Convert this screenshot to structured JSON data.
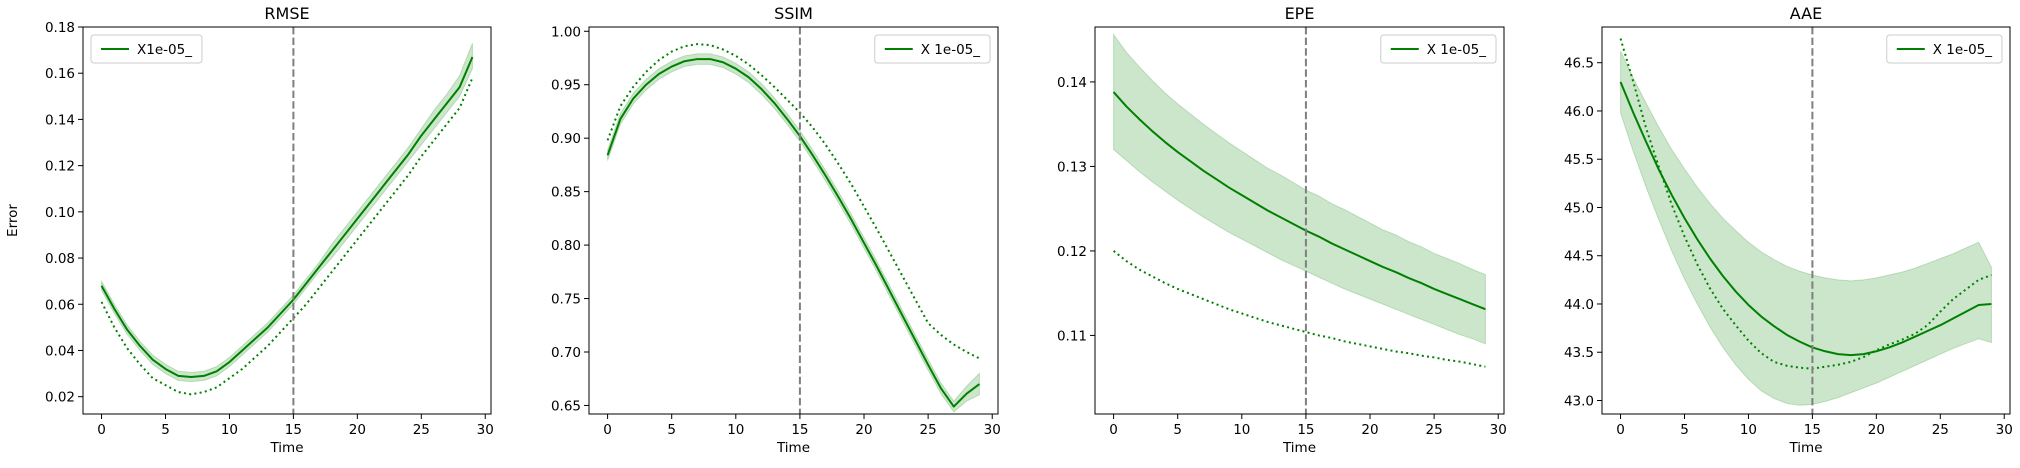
{
  "chart_data": [
    {
      "type": "line",
      "title": "RMSE",
      "xlabel": "Time",
      "ylabel": "Error",
      "xlim": [
        -1.45,
        30.45
      ],
      "ylim": [
        0.0125,
        0.18
      ],
      "xticks": [
        0,
        5,
        10,
        15,
        20,
        25,
        30
      ],
      "xtick_labels": [
        "0",
        "5",
        "10",
        "15",
        "20",
        "25",
        "30"
      ],
      "yticks": [
        0.02,
        0.04,
        0.06,
        0.08,
        0.1,
        0.12,
        0.14,
        0.16,
        0.18
      ],
      "ytick_labels": [
        "0.02",
        "0.04",
        "0.06",
        "0.08",
        "0.10",
        "0.12",
        "0.14",
        "0.16",
        "0.18"
      ],
      "vline_x": 15,
      "legend": {
        "label": "X1e-05_",
        "loc": "upper left"
      },
      "color": "#008000",
      "x": [
        0,
        1,
        2,
        3,
        4,
        5,
        6,
        7,
        8,
        9,
        10,
        11,
        12,
        13,
        14,
        15,
        16,
        17,
        18,
        19,
        20,
        21,
        22,
        23,
        24,
        25,
        26,
        27,
        28,
        29
      ],
      "series": [
        {
          "name": "X1e-05_",
          "style": "solid",
          "values": [
            0.068,
            0.058,
            0.049,
            0.042,
            0.036,
            0.032,
            0.029,
            0.0285,
            0.029,
            0.031,
            0.035,
            0.04,
            0.045,
            0.05,
            0.056,
            0.062,
            0.069,
            0.076,
            0.083,
            0.09,
            0.097,
            0.104,
            0.111,
            0.118,
            0.125,
            0.133,
            0.14,
            0.147,
            0.154,
            0.167
          ],
          "band_low": [
            0.066,
            0.056,
            0.047,
            0.04,
            0.034,
            0.03,
            0.027,
            0.0265,
            0.027,
            0.029,
            0.033,
            0.038,
            0.043,
            0.048,
            0.054,
            0.06,
            0.067,
            0.074,
            0.08,
            0.087,
            0.094,
            0.101,
            0.108,
            0.115,
            0.122,
            0.129,
            0.136,
            0.143,
            0.15,
            0.162
          ],
          "band_high": [
            0.07,
            0.06,
            0.051,
            0.044,
            0.038,
            0.034,
            0.031,
            0.0305,
            0.031,
            0.033,
            0.037,
            0.042,
            0.047,
            0.052,
            0.058,
            0.064,
            0.071,
            0.078,
            0.086,
            0.093,
            0.1,
            0.107,
            0.114,
            0.121,
            0.128,
            0.136,
            0.144,
            0.151,
            0.159,
            0.173
          ]
        },
        {
          "style": "dotted",
          "values": [
            0.061,
            0.05,
            0.041,
            0.034,
            0.028,
            0.025,
            0.022,
            0.021,
            0.022,
            0.024,
            0.028,
            0.032,
            0.037,
            0.042,
            0.048,
            0.054,
            0.06,
            0.067,
            0.074,
            0.081,
            0.088,
            0.095,
            0.102,
            0.109,
            0.116,
            0.124,
            0.131,
            0.138,
            0.145,
            0.158
          ]
        }
      ]
    },
    {
      "type": "line",
      "title": "SSIM",
      "xlabel": "Time",
      "ylabel": "",
      "xlim": [
        -1.45,
        30.45
      ],
      "ylim": [
        0.642,
        1.004
      ],
      "xticks": [
        0,
        5,
        10,
        15,
        20,
        25,
        30
      ],
      "xtick_labels": [
        "0",
        "5",
        "10",
        "15",
        "20",
        "25",
        "30"
      ],
      "yticks": [
        0.65,
        0.7,
        0.75,
        0.8,
        0.85,
        0.9,
        0.95,
        1.0
      ],
      "ytick_labels": [
        "0.65",
        "0.70",
        "0.75",
        "0.80",
        "0.85",
        "0.90",
        "0.95",
        "1.00"
      ],
      "vline_x": 15,
      "legend": {
        "label": "X 1e-05_",
        "loc": "upper right"
      },
      "color": "#008000",
      "x": [
        0,
        1,
        2,
        3,
        4,
        5,
        6,
        7,
        8,
        9,
        10,
        11,
        12,
        13,
        14,
        15,
        16,
        17,
        18,
        19,
        20,
        21,
        22,
        23,
        24,
        25,
        26,
        27,
        28,
        29
      ],
      "series": [
        {
          "name": "X 1e-05_",
          "style": "solid",
          "values": [
            0.884,
            0.918,
            0.937,
            0.95,
            0.96,
            0.967,
            0.972,
            0.974,
            0.974,
            0.971,
            0.965,
            0.957,
            0.946,
            0.933,
            0.918,
            0.902,
            0.884,
            0.865,
            0.845,
            0.824,
            0.802,
            0.78,
            0.757,
            0.734,
            0.711,
            0.688,
            0.666,
            0.649,
            0.661,
            0.67
          ],
          "band_low": [
            0.879,
            0.913,
            0.932,
            0.945,
            0.955,
            0.962,
            0.967,
            0.969,
            0.969,
            0.966,
            0.96,
            0.952,
            0.941,
            0.928,
            0.913,
            0.897,
            0.879,
            0.86,
            0.84,
            0.819,
            0.797,
            0.775,
            0.752,
            0.729,
            0.706,
            0.683,
            0.661,
            0.644,
            0.654,
            0.66
          ],
          "band_high": [
            0.889,
            0.923,
            0.942,
            0.955,
            0.965,
            0.972,
            0.977,
            0.979,
            0.979,
            0.976,
            0.97,
            0.962,
            0.951,
            0.938,
            0.923,
            0.907,
            0.889,
            0.87,
            0.85,
            0.829,
            0.807,
            0.785,
            0.762,
            0.739,
            0.716,
            0.693,
            0.671,
            0.654,
            0.668,
            0.68
          ]
        },
        {
          "style": "dotted",
          "values": [
            0.898,
            0.93,
            0.948,
            0.962,
            0.973,
            0.981,
            0.986,
            0.988,
            0.987,
            0.983,
            0.977,
            0.969,
            0.959,
            0.948,
            0.936,
            0.924,
            0.91,
            0.894,
            0.876,
            0.857,
            0.836,
            0.815,
            0.793,
            0.771,
            0.749,
            0.727,
            0.716,
            0.707,
            0.7,
            0.694
          ]
        }
      ]
    },
    {
      "type": "line",
      "title": "EPE",
      "xlabel": "Time",
      "ylabel": "",
      "xlim": [
        -1.45,
        30.45
      ],
      "ylim": [
        0.1007,
        0.1465
      ],
      "xticks": [
        0,
        5,
        10,
        15,
        20,
        25,
        30
      ],
      "xtick_labels": [
        "0",
        "5",
        "10",
        "15",
        "20",
        "25",
        "30"
      ],
      "yticks": [
        0.11,
        0.12,
        0.13,
        0.14
      ],
      "ytick_labels": [
        "0.11",
        "0.12",
        "0.13",
        "0.14"
      ],
      "vline_x": 15,
      "legend": {
        "label": "X 1e-05_",
        "loc": "upper right"
      },
      "color": "#008000",
      "x": [
        0,
        1,
        2,
        3,
        4,
        5,
        6,
        7,
        8,
        9,
        10,
        11,
        12,
        13,
        14,
        15,
        16,
        17,
        18,
        19,
        20,
        21,
        22,
        23,
        24,
        25,
        26,
        27,
        28,
        29
      ],
      "series": [
        {
          "name": "X 1e-05_",
          "style": "solid",
          "values": [
            0.1388,
            0.1371,
            0.1356,
            0.1342,
            0.1329,
            0.1317,
            0.1306,
            0.1295,
            0.1285,
            0.1275,
            0.1266,
            0.1257,
            0.1248,
            0.124,
            0.1232,
            0.1224,
            0.1217,
            0.1209,
            0.1202,
            0.1195,
            0.1188,
            0.1181,
            0.1175,
            0.1168,
            0.1162,
            0.1155,
            0.1149,
            0.1143,
            0.1137,
            0.1131
          ],
          "band_low": [
            0.132,
            0.1307,
            0.1294,
            0.1282,
            0.1271,
            0.126,
            0.125,
            0.124,
            0.1231,
            0.1222,
            0.1214,
            0.1206,
            0.1198,
            0.119,
            0.1183,
            0.1176,
            0.1169,
            0.1162,
            0.1155,
            0.1149,
            0.1143,
            0.1137,
            0.1131,
            0.1125,
            0.1119,
            0.1113,
            0.1107,
            0.1101,
            0.1096,
            0.109
          ],
          "band_high": [
            0.1456,
            0.1435,
            0.1418,
            0.1402,
            0.1387,
            0.1374,
            0.1362,
            0.135,
            0.1339,
            0.1328,
            0.1318,
            0.1308,
            0.1298,
            0.129,
            0.1281,
            0.1272,
            0.1265,
            0.1256,
            0.1249,
            0.1241,
            0.1233,
            0.1225,
            0.1219,
            0.1211,
            0.1205,
            0.1197,
            0.1191,
            0.1185,
            0.1178,
            0.1172
          ]
        },
        {
          "style": "dotted",
          "values": [
            0.12,
            0.1188,
            0.1178,
            0.117,
            0.1162,
            0.1155,
            0.1149,
            0.1143,
            0.1137,
            0.1131,
            0.1126,
            0.1121,
            0.1116,
            0.1112,
            0.1108,
            0.1104,
            0.11,
            0.1097,
            0.1093,
            0.109,
            0.1087,
            0.1084,
            0.1081,
            0.1079,
            0.1076,
            0.1074,
            0.1071,
            0.1069,
            0.1066,
            0.1063
          ]
        }
      ]
    },
    {
      "type": "line",
      "title": "AAE",
      "xlabel": "Time",
      "ylabel": "",
      "xlim": [
        -1.45,
        30.45
      ],
      "ylim": [
        42.86,
        46.87
      ],
      "xticks": [
        0,
        5,
        10,
        15,
        20,
        25,
        30
      ],
      "xtick_labels": [
        "0",
        "5",
        "10",
        "15",
        "20",
        "25",
        "30"
      ],
      "yticks": [
        43.0,
        43.5,
        44.0,
        44.5,
        45.0,
        45.5,
        46.0,
        46.5
      ],
      "ytick_labels": [
        "43.0",
        "43.5",
        "44.0",
        "44.5",
        "45.0",
        "45.5",
        "46.0",
        "46.5"
      ],
      "vline_x": 15,
      "legend": {
        "label": "X 1e-05_",
        "loc": "upper right"
      },
      "color": "#008000",
      "x": [
        0,
        1,
        2,
        3,
        4,
        5,
        6,
        7,
        8,
        9,
        10,
        11,
        12,
        13,
        14,
        15,
        16,
        17,
        18,
        19,
        20,
        21,
        22,
        23,
        24,
        25,
        26,
        27,
        28,
        29
      ],
      "series": [
        {
          "name": "X 1e-05_",
          "style": "solid",
          "values": [
            46.3,
            45.98,
            45.68,
            45.39,
            45.13,
            44.89,
            44.67,
            44.47,
            44.29,
            44.13,
            43.99,
            43.87,
            43.77,
            43.68,
            43.61,
            43.55,
            43.51,
            43.48,
            43.47,
            43.48,
            43.51,
            43.55,
            43.6,
            43.66,
            43.72,
            43.78,
            43.85,
            43.92,
            43.99,
            44.0
          ],
          "band_low": [
            45.98,
            45.58,
            45.21,
            44.87,
            44.55,
            44.26,
            44.0,
            43.76,
            43.55,
            43.37,
            43.22,
            43.1,
            43.02,
            42.97,
            42.95,
            42.96,
            42.99,
            43.03,
            43.08,
            43.13,
            43.18,
            43.24,
            43.3,
            43.36,
            43.42,
            43.48,
            43.54,
            43.59,
            43.64,
            43.6
          ],
          "band_high": [
            46.62,
            46.34,
            46.08,
            45.83,
            45.6,
            45.4,
            45.21,
            45.04,
            44.89,
            44.76,
            44.64,
            44.54,
            44.46,
            44.39,
            44.34,
            44.3,
            44.27,
            44.25,
            44.24,
            44.25,
            44.27,
            44.3,
            44.33,
            44.37,
            44.42,
            44.47,
            44.52,
            44.58,
            44.64,
            44.38
          ]
        },
        {
          "style": "dotted",
          "values": [
            46.75,
            46.3,
            45.82,
            45.42,
            45.03,
            44.7,
            44.41,
            44.16,
            43.95,
            43.78,
            43.62,
            43.49,
            43.4,
            43.36,
            43.34,
            43.33,
            43.35,
            43.37,
            43.4,
            43.45,
            43.52,
            43.58,
            43.63,
            43.69,
            43.78,
            43.92,
            44.05,
            44.15,
            44.25,
            44.3
          ]
        }
      ]
    }
  ]
}
